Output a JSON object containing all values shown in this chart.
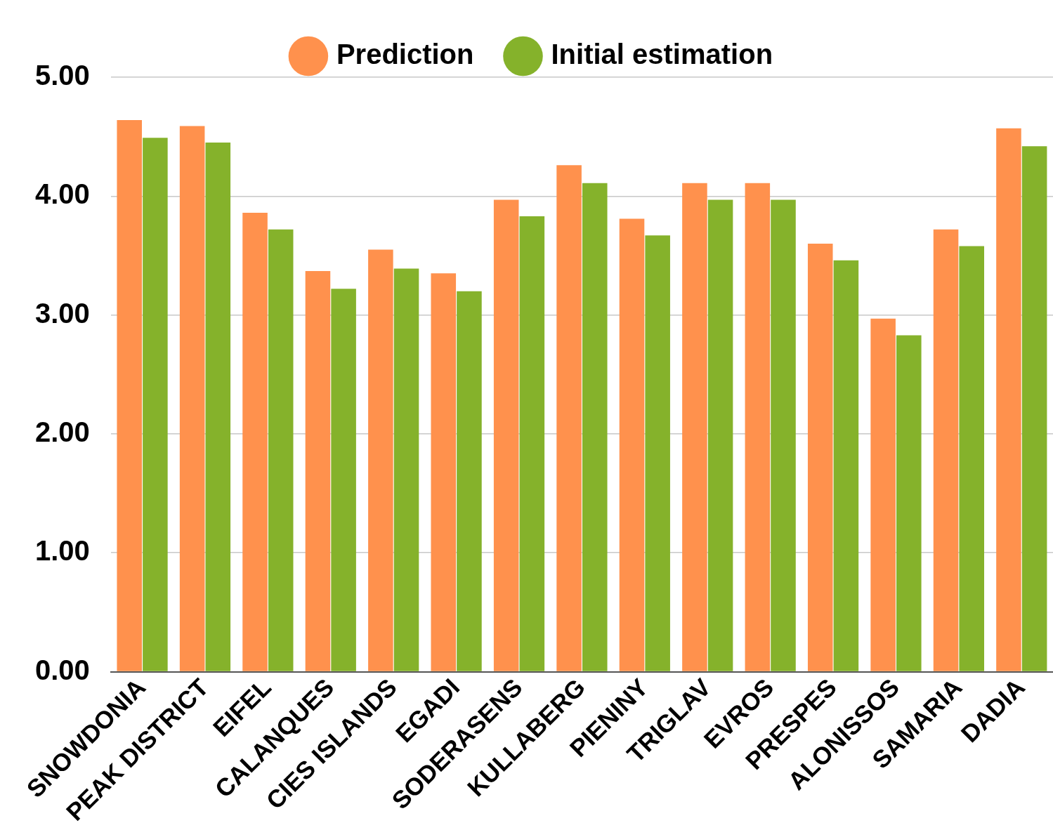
{
  "chart_data": {
    "type": "bar",
    "categories": [
      "SNOWDONIA",
      "PEAK DISTRICT",
      "EIFEL",
      "CALANQUES",
      "CIES ISLANDS",
      "EGADI",
      "SODERASENS",
      "KULLABERG",
      "PIENINY",
      "TRIGLAV",
      "EVROS",
      "PRESPES",
      "ALONISSOS",
      "SAMARIA",
      "DADIA"
    ],
    "series": [
      {
        "name": "Prediction",
        "color": "#ff914d",
        "values": [
          4.64,
          4.59,
          3.86,
          3.37,
          3.55,
          3.35,
          3.97,
          4.26,
          3.81,
          4.11,
          4.11,
          3.6,
          2.97,
          3.72,
          4.57
        ]
      },
      {
        "name": "Initial estimation",
        "color": "#85b22b",
        "values": [
          4.49,
          4.45,
          3.72,
          3.22,
          3.39,
          3.2,
          3.83,
          4.11,
          3.67,
          3.97,
          3.97,
          3.46,
          2.83,
          3.58,
          4.42
        ]
      }
    ],
    "ylim": [
      0,
      5
    ],
    "yticks": [
      {
        "value": 0,
        "label": "0.00"
      },
      {
        "value": 1,
        "label": "1.00"
      },
      {
        "value": 2,
        "label": "2.00"
      },
      {
        "value": 3,
        "label": "3.00"
      },
      {
        "value": 4,
        "label": "4.00"
      },
      {
        "value": 5,
        "label": "5.00"
      }
    ],
    "grid": "y",
    "legend": "top"
  }
}
